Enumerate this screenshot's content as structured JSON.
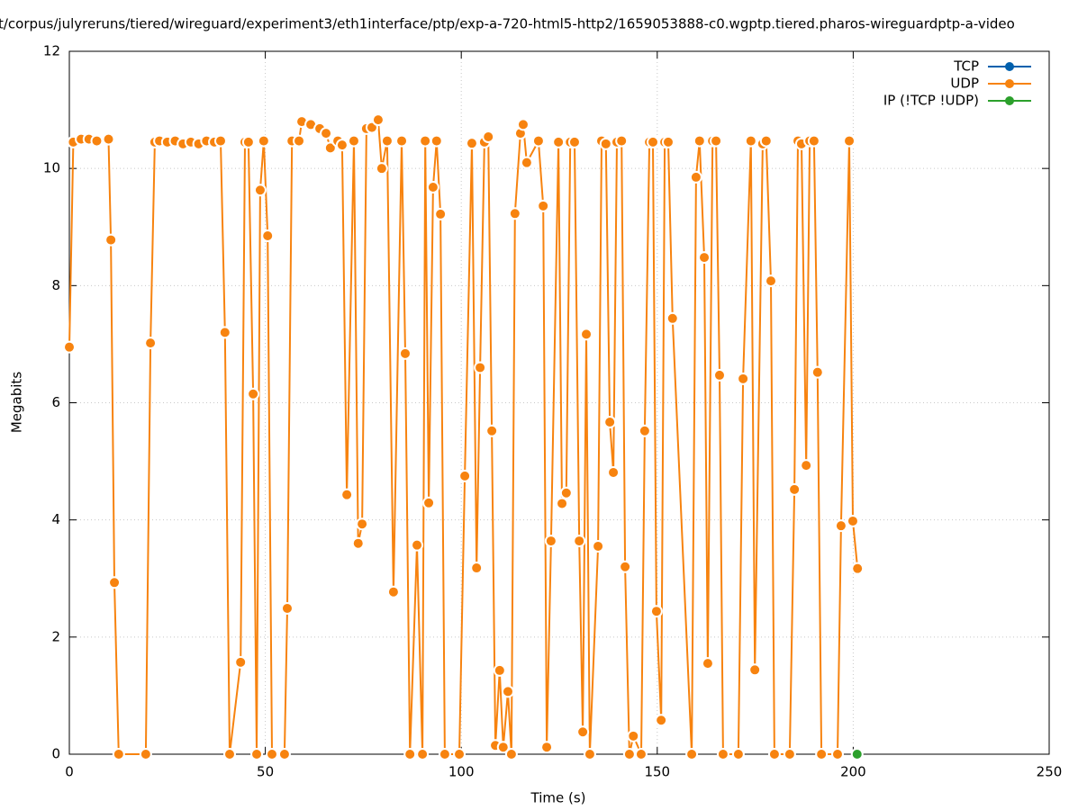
{
  "chart_data": {
    "type": "line",
    "title": "t/corpus/julyreruns/tiered/wireguard/experiment3/eth1interface/ptp/exp-a-720-html5-http2/1659053888-c0.wgptp.tiered.pharos-wireguardptp-a-video",
    "xlabel": "Time (s)",
    "ylabel": "Megabits",
    "xlim": [
      0,
      250
    ],
    "ylim": [
      0,
      12
    ],
    "xticks": [
      0,
      50,
      100,
      150,
      200,
      250
    ],
    "yticks": [
      0,
      2,
      4,
      6,
      8,
      10,
      12
    ],
    "grid": true,
    "legend": "top-right",
    "series": [
      {
        "name": "TCP",
        "color": "#0060ad",
        "x": [],
        "values": []
      },
      {
        "name": "UDP",
        "color": "#f7830f",
        "x": [
          0,
          1,
          3,
          5,
          7,
          10,
          10.6,
          11.5,
          12.6,
          19.5,
          20.7,
          21.8,
          23,
          25,
          27,
          29,
          31,
          33,
          35,
          37,
          38.6,
          39.7,
          40.9,
          43.7,
          44.8,
          45.7,
          46.9,
          47.8,
          48.7,
          49.6,
          50.6,
          51.7,
          54.9,
          55.6,
          56.8,
          58.6,
          59.3,
          61.6,
          63.9,
          65.5,
          66.6,
          68.5,
          69.6,
          70.8,
          72.6,
          73.7,
          74.7,
          75.8,
          77.2,
          78.8,
          79.7,
          81.1,
          82.7,
          84.8,
          85.7,
          86.9,
          88.7,
          90.1,
          90.8,
          91.7,
          92.8,
          93.7,
          94.7,
          95.8,
          99.5,
          100.9,
          102.7,
          103.9,
          104.8,
          105.9,
          106.9,
          107.8,
          108.7,
          109.8,
          110.7,
          111.9,
          112.8,
          113.7,
          115.1,
          115.8,
          116.7,
          119.7,
          120.9,
          121.8,
          122.9,
          124.8,
          125.7,
          126.8,
          127.8,
          128.9,
          130.1,
          131,
          131.9,
          132.8,
          134.9,
          135.8,
          136.9,
          137.9,
          138.8,
          139.7,
          140.9,
          141.8,
          142.9,
          143.9,
          145.9,
          146.8,
          148,
          148.9,
          149.8,
          151,
          151.9,
          152.8,
          153.9,
          158.8,
          159.9,
          160.8,
          162,
          162.9,
          164.1,
          165,
          165.9,
          166.8,
          170.7,
          171.9,
          173.9,
          174.9,
          176.9,
          177.8,
          179,
          179.9,
          183.8,
          185,
          185.9,
          186.8,
          188,
          188.9,
          190,
          190.9,
          191.9,
          196,
          196.9,
          199,
          199.9,
          201.1
        ],
        "values": [
          6.95,
          10.45,
          10.5,
          10.5,
          10.47,
          10.5,
          8.78,
          2.93,
          0,
          0,
          7.02,
          10.45,
          10.47,
          10.45,
          10.47,
          10.42,
          10.45,
          10.42,
          10.47,
          10.45,
          10.47,
          7.2,
          0,
          1.57,
          10.45,
          10.45,
          6.15,
          0,
          9.63,
          10.47,
          8.85,
          0,
          0,
          2.49,
          10.47,
          10.47,
          10.8,
          10.75,
          10.68,
          10.6,
          10.35,
          10.47,
          10.4,
          4.43,
          10.47,
          3.6,
          3.93,
          10.68,
          10.7,
          10.83,
          10.0,
          10.47,
          2.77,
          10.47,
          6.84,
          0,
          3.57,
          0,
          10.47,
          4.29,
          9.68,
          10.47,
          9.22,
          0,
          0,
          4.75,
          10.43,
          3.18,
          6.6,
          10.45,
          10.54,
          5.52,
          0.15,
          1.43,
          0.12,
          1.07,
          0,
          9.23,
          10.6,
          10.75,
          10.1,
          10.47,
          9.36,
          0.12,
          3.64,
          10.45,
          4.28,
          4.46,
          10.45,
          10.45,
          3.64,
          0.38,
          7.17,
          0,
          3.55,
          10.47,
          10.42,
          5.67,
          4.81,
          10.45,
          10.47,
          3.2,
          0,
          0.31,
          0,
          5.52,
          10.45,
          10.45,
          2.44,
          0.58,
          10.45,
          10.45,
          7.44,
          0,
          9.85,
          10.47,
          8.48,
          1.55,
          10.47,
          10.47,
          6.47,
          0,
          0,
          6.41,
          10.47,
          1.44,
          10.42,
          10.47,
          8.08,
          0,
          0,
          4.52,
          10.47,
          10.42,
          4.93,
          10.47,
          10.47,
          6.52,
          0,
          0,
          3.9,
          10.47,
          3.98,
          3.17
        ]
      },
      {
        "name": "IP (!TCP  !UDP)",
        "color": "#2ca02c",
        "x": [
          201
        ],
        "values": [
          0
        ]
      }
    ]
  }
}
